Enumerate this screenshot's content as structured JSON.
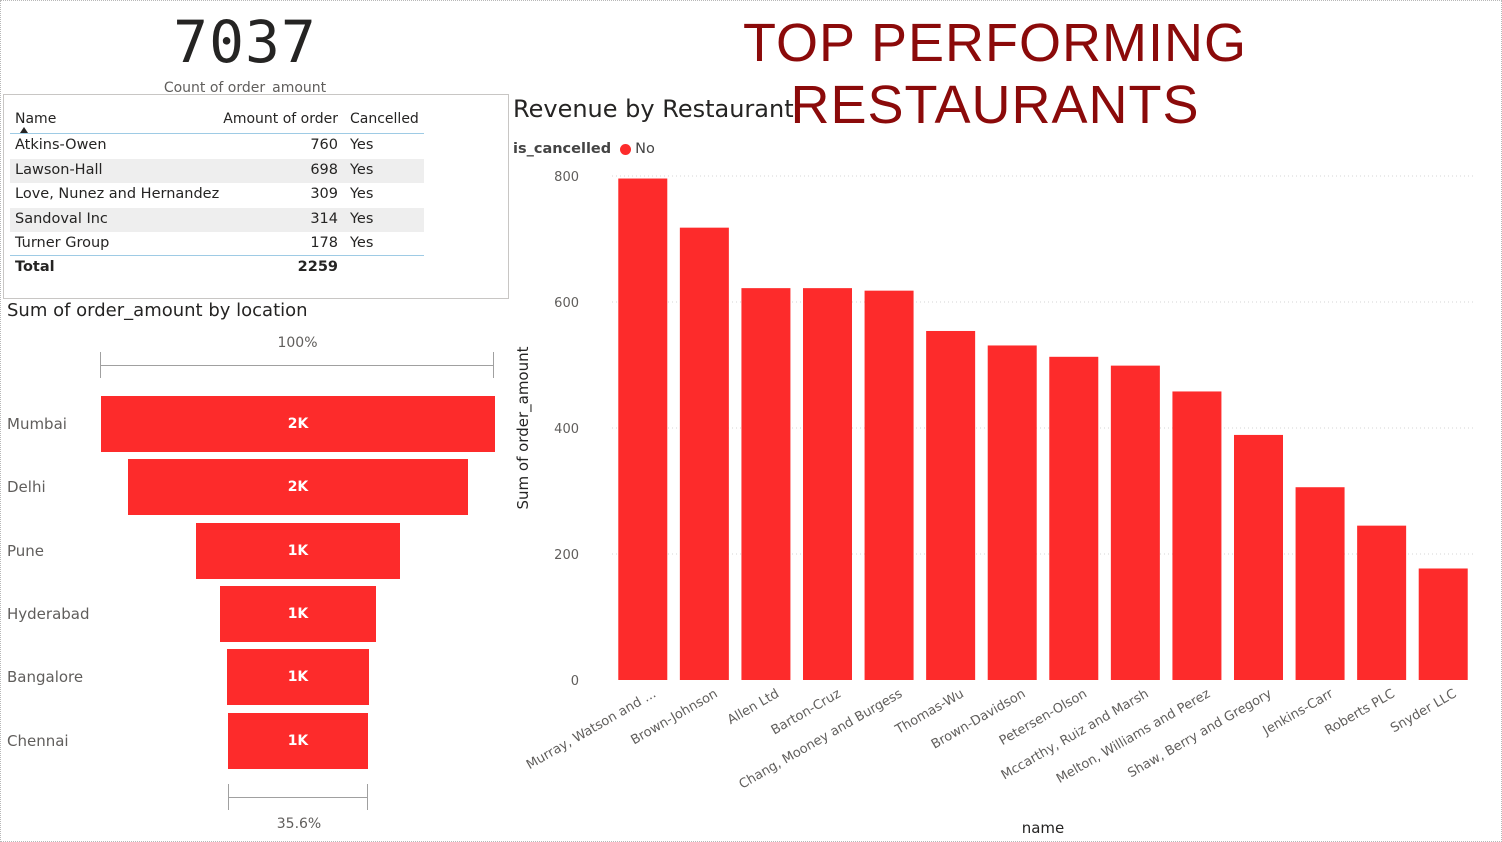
{
  "kpi": {
    "value": "7037",
    "caption": "Count of order_amount"
  },
  "page_title": "TOP PERFORMING RESTAURANTS",
  "table": {
    "headers": {
      "name": "Name",
      "amount": "Amount of order",
      "cancelled": "Cancelled"
    },
    "rows": [
      {
        "name": "Atkins-Owen",
        "amount": "760",
        "cancelled": "Yes"
      },
      {
        "name": "Lawson-Hall",
        "amount": "698",
        "cancelled": "Yes"
      },
      {
        "name": "Love, Nunez and Hernandez",
        "amount": "309",
        "cancelled": "Yes"
      },
      {
        "name": "Sandoval Inc",
        "amount": "314",
        "cancelled": "Yes"
      },
      {
        "name": "Turner Group",
        "amount": "178",
        "cancelled": "Yes"
      }
    ],
    "total": {
      "label": "Total",
      "amount": "2259"
    }
  },
  "funnel": {
    "title": "Sum of order_amount by location",
    "top_percent": "100%",
    "bottom_percent": "35.6%",
    "color": "#fd2b2b",
    "stages": [
      {
        "label": "Mumbai",
        "value_label": "2K",
        "relative": 1.0
      },
      {
        "label": "Delhi",
        "value_label": "2K",
        "relative": 0.865
      },
      {
        "label": "Pune",
        "value_label": "1K",
        "relative": 0.52
      },
      {
        "label": "Hyderabad",
        "value_label": "1K",
        "relative": 0.395
      },
      {
        "label": "Bangalore",
        "value_label": "1K",
        "relative": 0.362
      },
      {
        "label": "Chennai",
        "value_label": "1K",
        "relative": 0.356
      }
    ]
  },
  "bar_chart": {
    "title": "Revenue by Restaurant",
    "legend_title": "is_cancelled",
    "legend_item": "No",
    "color": "#fd2b2b"
  },
  "chart_data": {
    "type": "bar",
    "title": "Revenue by Restaurant",
    "xlabel": "name",
    "ylabel": "Sum of order_amount",
    "ylim": [
      0,
      800
    ],
    "yticks": [
      0,
      200,
      400,
      600,
      800
    ],
    "grid": true,
    "legend": {
      "title": "is_cancelled",
      "entries": [
        "No"
      ],
      "position": "top-left"
    },
    "categories": [
      "Murray, Watson and ...",
      "Brown-Johnson",
      "Allen Ltd",
      "Barton-Cruz",
      "Chang, Mooney and Burgess",
      "Thomas-Wu",
      "Brown-Davidson",
      "Petersen-Olson",
      "Mccarthy, Ruiz and Marsh",
      "Melton, Williams and Perez",
      "Shaw, Berry and Gregory",
      "Jenkins-Carr",
      "Roberts PLC",
      "Snyder LLC"
    ],
    "series": [
      {
        "name": "No",
        "values": [
          796,
          718,
          622,
          622,
          618,
          554,
          531,
          513,
          499,
          458,
          389,
          306,
          245,
          177
        ]
      }
    ]
  }
}
